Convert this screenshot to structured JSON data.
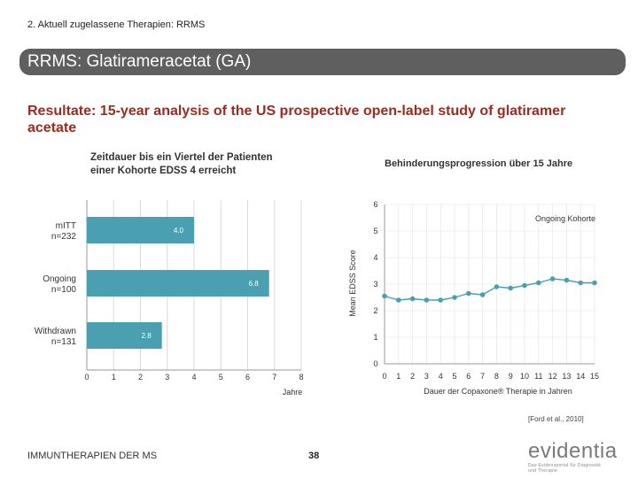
{
  "header": {
    "breadcrumb": "2. Aktuell zugelassene Therapien: RRMS",
    "title": "RRMS: Glatirameracetat (GA)",
    "subtitle": "Resultate: 15-year analysis of the US prospective open-label study of glatiramer acetate"
  },
  "colors": {
    "bar": "#4aa0b0",
    "line": "#4aa0b0",
    "title_bar": "#5f5f5f",
    "subtitle": "#9c2a1e"
  },
  "chart_data": [
    {
      "type": "bar",
      "orientation": "horizontal",
      "title": "Zeitdauer bis ein Viertel der Patienten einer Kohorte EDSS 4 erreicht",
      "title_lines": [
        "Zeitdauer bis ein Viertel der Patienten",
        "einer Kohorte EDSS 4 erreicht"
      ],
      "categories": [
        {
          "name": "mITT",
          "n": "n=232"
        },
        {
          "name": "Ongoing",
          "n": "n=100"
        },
        {
          "name": "Withdrawn",
          "n": "n=131"
        }
      ],
      "values": [
        4.0,
        6.8,
        2.8
      ],
      "value_labels": [
        "4.0",
        "6.8",
        "2.8"
      ],
      "xlabel": "Jahre",
      "ylabel": "",
      "xlim": [
        0,
        8
      ],
      "xticks": [
        "0",
        "1",
        "2",
        "3",
        "4",
        "5",
        "6",
        "7",
        "8"
      ],
      "grid": true
    },
    {
      "type": "line",
      "title": "Behinderungsprogression über 15 Jahre",
      "xlabel": "Dauer der Copaxone® Therapie in Jahren",
      "ylabel": "Mean EDSS Score",
      "xlim": [
        0,
        15
      ],
      "ylim": [
        0,
        6
      ],
      "xticks": [
        "0",
        "1",
        "2",
        "3",
        "4",
        "5",
        "6",
        "7",
        "8",
        "9",
        "10",
        "11",
        "12",
        "13",
        "14",
        "15"
      ],
      "yticks": [
        "0",
        "1",
        "2",
        "3",
        "4",
        "5",
        "6"
      ],
      "annotation": "Ongoing Kohorte",
      "grid": true,
      "series": [
        {
          "name": "Ongoing Kohorte",
          "x": [
            0,
            1,
            2,
            3,
            4,
            5,
            6,
            7,
            8,
            9,
            10,
            11,
            12,
            13,
            14,
            15
          ],
          "values": [
            2.55,
            2.4,
            2.45,
            2.4,
            2.4,
            2.5,
            2.65,
            2.6,
            2.9,
            2.85,
            2.95,
            3.05,
            3.2,
            3.15,
            3.05,
            3.05
          ]
        }
      ]
    }
  ],
  "footer": {
    "left": "IMMUNTHERAPIEN DER MS",
    "page": "38",
    "citation": "[Ford et al., 2010]",
    "logo_word": "evidentia",
    "logo_tag_1": "Das Evidenzportal für Diagnostik",
    "logo_tag_2": "und Therapie"
  }
}
